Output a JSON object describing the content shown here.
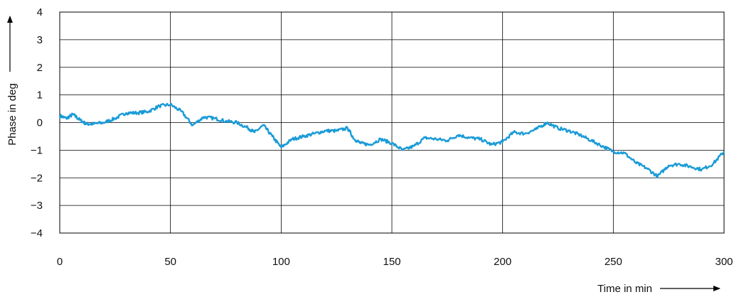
{
  "chart_data": {
    "type": "line",
    "title": "",
    "xlabel": "Time in min",
    "ylabel": "Phase in deg",
    "xlim": [
      0,
      300
    ],
    "ylim": [
      -4,
      4
    ],
    "x_ticks": [
      0,
      50,
      100,
      150,
      200,
      250,
      300
    ],
    "y_ticks": [
      4,
      3,
      2,
      1,
      0,
      -1,
      -2,
      -3,
      -4
    ],
    "y_tick_labels": [
      "4",
      "3",
      "2",
      "1",
      "0",
      "−1",
      "−2",
      "−3",
      "−4"
    ],
    "grid": true,
    "line_color": "#1a9bd7",
    "series": [
      {
        "x": [
          0,
          3,
          6,
          9,
          12,
          15,
          20,
          25,
          30,
          35,
          40,
          45,
          50,
          55,
          60,
          65,
          70,
          75,
          80,
          85,
          88,
          92,
          96,
          100,
          105,
          110,
          115,
          120,
          125,
          130,
          133,
          136,
          140,
          145,
          150,
          155,
          160,
          165,
          170,
          175,
          180,
          185,
          190,
          195,
          200,
          205,
          210,
          215,
          220,
          225,
          230,
          235,
          240,
          245,
          250,
          255,
          260,
          265,
          270,
          275,
          280,
          285,
          290,
          295,
          300
        ],
        "y": [
          0.25,
          0.15,
          0.3,
          0.1,
          -0.05,
          -0.05,
          0.0,
          0.15,
          0.35,
          0.35,
          0.4,
          0.6,
          0.65,
          0.4,
          -0.1,
          0.2,
          0.15,
          0.05,
          0.0,
          -0.2,
          -0.35,
          -0.1,
          -0.5,
          -0.9,
          -0.6,
          -0.5,
          -0.4,
          -0.3,
          -0.3,
          -0.2,
          -0.6,
          -0.75,
          -0.8,
          -0.6,
          -0.75,
          -1.0,
          -0.85,
          -0.55,
          -0.6,
          -0.65,
          -0.45,
          -0.55,
          -0.6,
          -0.8,
          -0.7,
          -0.35,
          -0.4,
          -0.25,
          0.0,
          -0.2,
          -0.3,
          -0.45,
          -0.65,
          -0.85,
          -1.05,
          -1.1,
          -1.45,
          -1.65,
          -1.95,
          -1.55,
          -1.5,
          -1.6,
          -1.7,
          -1.5,
          -1.05
        ]
      }
    ]
  }
}
